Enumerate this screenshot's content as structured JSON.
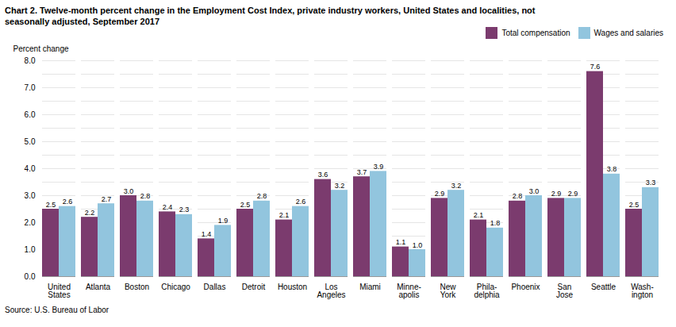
{
  "chart_data": {
    "type": "bar",
    "title": "Chart 2. Twelve-month percent change in the Employment Cost Index, private industry workers, United States and localities, not\nseasonally adjusted, September 2017",
    "ylabel": "Percent change",
    "source": "Source: U.S. Bureau of Labor",
    "categories": [
      "United\nStates",
      "Atlanta",
      "Boston",
      "Chicago",
      "Dallas",
      "Detroit",
      "Houston",
      "Los\nAngeles",
      "Miami",
      "Minne-\napolis",
      "New\nYork",
      "Phila-\ndelphia",
      "Phoenix",
      "San\nJose",
      "Seattle",
      "Wash-\nington"
    ],
    "series": [
      {
        "name": "Total compensation",
        "color": "#7B3B6E",
        "values": [
          2.5,
          2.2,
          3.0,
          2.4,
          1.4,
          2.5,
          2.1,
          3.6,
          3.7,
          1.1,
          2.9,
          2.1,
          2.8,
          2.9,
          7.6,
          2.5
        ],
        "value_labels": [
          "2.5",
          "2.2",
          "3.0",
          "2.4",
          "1.4",
          "2.5",
          "2.1",
          "3.6",
          "3.7",
          "1.1",
          "2.9",
          "2.1",
          "2.8",
          "2.9",
          "7.6",
          "2.5"
        ]
      },
      {
        "name": "Wages and salaries",
        "color": "#92C5DE",
        "values": [
          2.6,
          2.7,
          2.8,
          2.3,
          1.9,
          2.8,
          2.6,
          3.2,
          3.9,
          1.0,
          3.2,
          1.8,
          3.0,
          2.9,
          3.8,
          3.3
        ],
        "value_labels": [
          "2.6",
          "2.7",
          "2.8",
          "2.3",
          "1.9",
          "2.8",
          "2.6",
          "3.2",
          "3.9",
          "1.0",
          "3.2",
          "1.8",
          "3.0",
          "2.9",
          "3.8",
          "3.3"
        ]
      }
    ],
    "ylim": [
      0.0,
      8.0
    ],
    "yticks": [
      {
        "value": 0,
        "label": "0.0"
      },
      {
        "value": 0.5,
        "label": null
      },
      {
        "value": 1,
        "label": "1.0"
      },
      {
        "value": 1.5,
        "label": null
      },
      {
        "value": 2,
        "label": "2.0"
      },
      {
        "value": 2.5,
        "label": null
      },
      {
        "value": 3,
        "label": "3.0"
      },
      {
        "value": 3.5,
        "label": null
      },
      {
        "value": 4,
        "label": "4.0"
      },
      {
        "value": 4.5,
        "label": null
      },
      {
        "value": 5,
        "label": "5.0"
      },
      {
        "value": 5.5,
        "label": null
      },
      {
        "value": 6,
        "label": "6.0"
      },
      {
        "value": 6.5,
        "label": null
      },
      {
        "value": 7,
        "label": "7.0"
      },
      {
        "value": 7.5,
        "label": null
      },
      {
        "value": 8,
        "label": "8.0"
      }
    ],
    "grid": "y",
    "legend": "upper right",
    "data_labels": true
  }
}
